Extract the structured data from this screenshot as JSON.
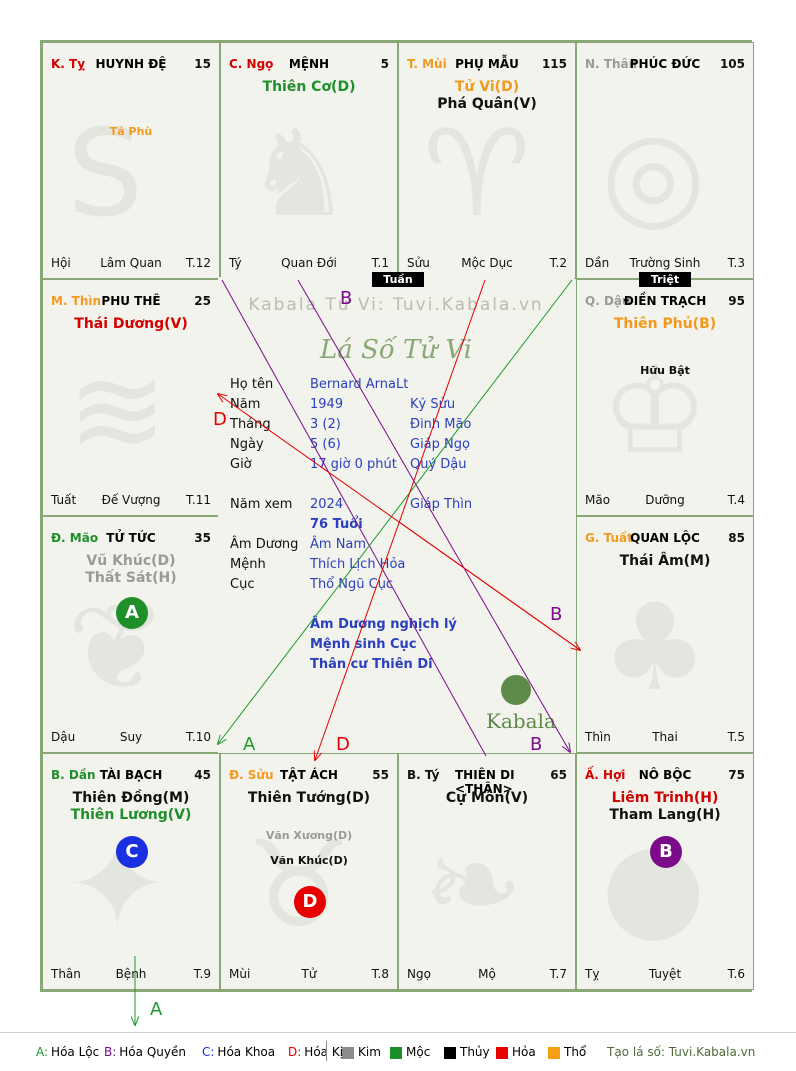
{
  "palaces": [
    {
      "can_chi": "K. Tỵ",
      "cc_color": "#d40000",
      "name": "HUYNH ĐỆ",
      "number": "15",
      "main_stars": [],
      "minor_stars": [
        {
          "text": "Tả Phù",
          "color": "#f29a1e"
        }
      ],
      "state": "Hội",
      "stage": "Lâm Quan",
      "tnum": "T.12",
      "watermark": "snake"
    },
    {
      "can_chi": "C. Ngọ",
      "cc_color": "#d40000",
      "name": "MỆNH",
      "number": "5",
      "main_stars": [
        {
          "text": "Thiên Cơ(D)",
          "color": "#1f8f2a"
        }
      ],
      "minor_stars": [],
      "state": "Tý",
      "stage": "Quan Đới",
      "tnum": "T.1",
      "watermark": "horse"
    },
    {
      "can_chi": "T. Mùi",
      "cc_color": "#f29a1e",
      "name": "PHỤ MẪU",
      "number": "115",
      "main_stars": [
        {
          "text": "Tử Vi(D)",
          "color": "#f29a1e"
        },
        {
          "text": "Phá Quân(V)",
          "color": "#111111"
        }
      ],
      "minor_stars": [],
      "state": "Sửu",
      "stage": "Mộc Dục",
      "tnum": "T.2",
      "watermark": "goat"
    },
    {
      "can_chi": "N. Thân",
      "cc_color": "#9a9a9a",
      "name": "PHÚC ĐỨC",
      "number": "105",
      "main_stars": [],
      "minor_stars": [],
      "state": "Dần",
      "stage": "Trường Sinh",
      "tnum": "T.3",
      "watermark": "monkey"
    },
    {
      "can_chi": "M. Thìn",
      "cc_color": "#f29a1e",
      "name": "PHU THÊ",
      "number": "25",
      "main_stars": [
        {
          "text": "Thái Dương(V)",
          "color": "#d40000"
        }
      ],
      "minor_stars": [],
      "state": "Tuất",
      "stage": "Đế Vượng",
      "tnum": "T.11",
      "watermark": "dragon"
    },
    {
      "can_chi": "Q. Dậu",
      "cc_color": "#9a9a9a",
      "name": "ĐIỀN TRẠCH",
      "number": "95",
      "main_stars": [
        {
          "text": "Thiên Phủ(B)",
          "color": "#f29a1e"
        }
      ],
      "minor_stars": [
        {
          "text": "Hữu Bật",
          "color": "#111111"
        }
      ],
      "state": "Mão",
      "stage": "Dưỡng",
      "tnum": "T.4",
      "watermark": "rooster"
    },
    {
      "can_chi": "Đ. Mão",
      "cc_color": "#1f8f2a",
      "name": "TỬ TỨC",
      "number": "35",
      "main_stars": [
        {
          "text": "Vũ Khúc(D)",
          "color": "#9a9a9a"
        },
        {
          "text": "Thất Sát(H)",
          "color": "#9a9a9a"
        }
      ],
      "minor_stars": [],
      "state": "Dậu",
      "stage": "Suy",
      "tnum": "T.10",
      "watermark": "cat",
      "hoa": {
        "letter": "A",
        "color": "#1f8f2a"
      }
    },
    {
      "can_chi": "G. Tuất",
      "cc_color": "#f29a1e",
      "name": "QUAN LỘC",
      "number": "85",
      "main_stars": [
        {
          "text": "Thái Âm(M)",
          "color": "#111111"
        }
      ],
      "minor_stars": [],
      "state": "Thìn",
      "stage": "Thai",
      "tnum": "T.5",
      "watermark": "dog"
    },
    {
      "can_chi": "B. Dần",
      "cc_color": "#1f8f2a",
      "name": "TÀI BẠCH",
      "number": "45",
      "main_stars": [
        {
          "text": "Thiên Đồng(M)",
          "color": "#111111"
        },
        {
          "text": "Thiên Lương(V)",
          "color": "#1f8f2a"
        }
      ],
      "minor_stars": [],
      "state": "Thân",
      "stage": "Bệnh",
      "tnum": "T.9",
      "watermark": "tiger",
      "hoa": {
        "letter": "C",
        "color": "#1a2fe0"
      }
    },
    {
      "can_chi": "Đ. Sửu",
      "cc_color": "#f29a1e",
      "name": "TẬT ÁCH",
      "number": "55",
      "main_stars": [
        {
          "text": "Thiên Tướng(D)",
          "color": "#111111"
        }
      ],
      "minor_stars": [
        {
          "text": "Văn Xương(D)",
          "color": "#9a9a9a"
        },
        {
          "text": "Văn Khúc(D)",
          "color": "#111111"
        }
      ],
      "state": "Mùi",
      "stage": "Tử",
      "tnum": "T.8",
      "watermark": "ox",
      "hoa": {
        "letter": "D",
        "color": "#e60000"
      }
    },
    {
      "can_chi": "B. Tý",
      "cc_color": "#111111",
      "name": "THIÊN DI <THÂN>",
      "number": "65",
      "main_stars": [
        {
          "text": "Cự Môn(V)",
          "color": "#111111"
        }
      ],
      "minor_stars": [],
      "state": "Ngọ",
      "stage": "Mộ",
      "tnum": "T.7",
      "watermark": "rat"
    },
    {
      "can_chi": "Ấ. Hợi",
      "cc_color": "#d40000",
      "name": "NÔ BỘC",
      "number": "75",
      "main_stars": [
        {
          "text": "Liêm Trinh(H)",
          "color": "#d40000"
        },
        {
          "text": "Tham Lang(H)",
          "color": "#111111"
        }
      ],
      "minor_stars": [],
      "state": "Tỵ",
      "stage": "Tuyệt",
      "tnum": "T.6",
      "watermark": "pig",
      "hoa": {
        "letter": "B",
        "color": "#7a0c8a"
      }
    }
  ],
  "center": {
    "watermark_site": "Kabala Tử Vi: Tuvi.Kabala.vn",
    "title": "Lá Số Tử Vi",
    "rows": [
      {
        "label": "Họ tên",
        "v1": "Bernard ArnaLt",
        "v2": ""
      },
      {
        "label": "Năm",
        "v1": "1949",
        "v2": "Kỷ Sửu"
      },
      {
        "label": "Tháng",
        "v1": "3  (2)",
        "v2": "Đinh Mão"
      },
      {
        "label": "Ngày",
        "v1": "5  (6)",
        "v2": "Giáp Ngọ"
      },
      {
        "label": "Giờ",
        "v1": "17 giờ 0 phút",
        "v2": "Quý Dậu"
      }
    ],
    "year_view": {
      "label": "Năm xem",
      "v1": "2024",
      "v2": "Giáp Thìn",
      "age": "76 Tuổi"
    },
    "rows2": [
      {
        "label": "Âm Dương",
        "v1": "Âm Nam"
      },
      {
        "label": "Mệnh",
        "v1": "Thích Lịch Hỏa"
      },
      {
        "label": "Cục",
        "v1": "Thổ Ngũ Cục"
      }
    ],
    "notes": [
      "Âm Dương nghịch lý",
      "Mệnh sinh Cục",
      "Thân cư Thiên Di"
    ],
    "logo_text": "Kabala"
  },
  "tags": {
    "tuan": "Tuần",
    "triet": "Triệt"
  },
  "arrow_labels": {
    "a": "A",
    "b": "B",
    "d": "D"
  },
  "arrow_colors": {
    "a": "#1f9a2a",
    "b": "#7a0c8a",
    "d": "#e60000"
  },
  "legend": {
    "hoa": [
      {
        "key": "A:",
        "label": "Hóa Lộc",
        "color": "#1f9a2a"
      },
      {
        "key": "B:",
        "label": "Hóa Quyền",
        "color": "#7a0c8a"
      },
      {
        "key": "C:",
        "label": "Hóa Khoa",
        "color": "#1a2fe0"
      },
      {
        "key": "D:",
        "label": "Hóa Kị",
        "color": "#e60000"
      }
    ],
    "elements": [
      {
        "label": "Kim",
        "color": "#8c8c8c"
      },
      {
        "label": "Mộc",
        "color": "#1a8f2a"
      },
      {
        "label": "Thủy",
        "color": "#000000"
      },
      {
        "label": "Hỏa",
        "color": "#e60000"
      },
      {
        "label": "Thổ",
        "color": "#f5a010"
      }
    ],
    "site": "Tạo lá số: Tuvi.Kabala.vn"
  }
}
